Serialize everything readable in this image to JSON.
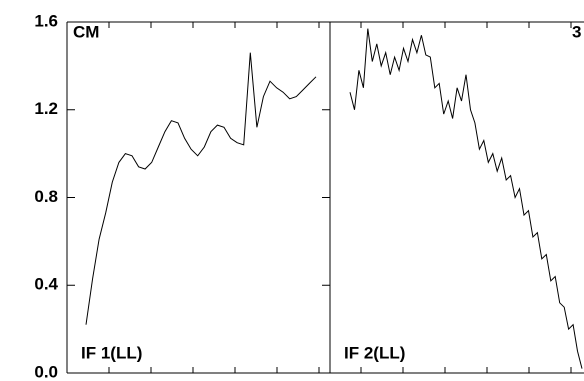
{
  "chart_data": [
    {
      "type": "line",
      "annotation": "CM",
      "label": "IF 1(LL)",
      "color": "#000000",
      "values": [
        0.22,
        0.43,
        0.61,
        0.73,
        0.87,
        0.96,
        1.0,
        0.99,
        0.94,
        0.93,
        0.96,
        1.03,
        1.1,
        1.15,
        1.14,
        1.07,
        1.02,
        0.99,
        1.03,
        1.1,
        1.13,
        1.12,
        1.07,
        1.05,
        1.04,
        1.46,
        1.12,
        1.26,
        1.33,
        1.3,
        1.28,
        1.25,
        1.26,
        1.29,
        1.32,
        1.35
      ],
      "ylim": [
        0,
        1.6
      ],
      "yticks": [
        {
          "value": 0,
          "label": "0.0"
        },
        0.4,
        0.8,
        1.2,
        1.6
      ]
    },
    {
      "type": "line",
      "annotation": "3",
      "label": "IF 2(LL)",
      "color": "#000000",
      "values": [
        1.28,
        1.2,
        1.38,
        1.3,
        1.57,
        1.42,
        1.5,
        1.4,
        1.46,
        1.36,
        1.44,
        1.38,
        1.48,
        1.42,
        1.52,
        1.46,
        1.54,
        1.45,
        1.44,
        1.3,
        1.32,
        1.18,
        1.24,
        1.16,
        1.3,
        1.24,
        1.36,
        1.2,
        1.14,
        1.02,
        1.06,
        0.96,
        1.0,
        0.92,
        0.98,
        0.88,
        0.9,
        0.8,
        0.84,
        0.72,
        0.74,
        0.62,
        0.64,
        0.52,
        0.54,
        0.42,
        0.44,
        0.32,
        0.3,
        0.2,
        0.22,
        0.1,
        0.02
      ],
      "ylim": [
        0,
        1.6
      ]
    }
  ]
}
